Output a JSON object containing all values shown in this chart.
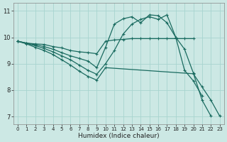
{
  "xlabel": "Humidex (Indice chaleur)",
  "xlim": [
    -0.5,
    23.5
  ],
  "ylim": [
    6.7,
    11.3
  ],
  "yticks": [
    7,
    8,
    9,
    10,
    11
  ],
  "xticks": [
    0,
    1,
    2,
    3,
    4,
    5,
    6,
    7,
    8,
    9,
    10,
    11,
    12,
    13,
    14,
    15,
    16,
    17,
    18,
    19,
    20,
    21,
    22,
    23
  ],
  "bg_color": "#cce8e4",
  "grid_color": "#a8d4cf",
  "line_color": "#1a6b60",
  "lines": [
    {
      "x": [
        0,
        1,
        2,
        3,
        4,
        5,
        6,
        7,
        8,
        9,
        10,
        11,
        12,
        13,
        14,
        15,
        16,
        17,
        18,
        19,
        20
      ],
      "y": [
        9.85,
        9.78,
        9.75,
        9.73,
        9.65,
        9.6,
        9.5,
        9.45,
        9.42,
        9.38,
        9.85,
        9.9,
        9.92,
        9.95,
        9.95,
        9.95,
        9.95,
        9.95,
        9.95,
        9.95,
        9.95
      ]
    },
    {
      "x": [
        0,
        1,
        2,
        3,
        4,
        5,
        6,
        7,
        8,
        9,
        10,
        11,
        12,
        13,
        14,
        15,
        16,
        17,
        18,
        19,
        20,
        21,
        22,
        23
      ],
      "y": [
        9.85,
        9.78,
        9.72,
        9.65,
        9.55,
        9.42,
        9.3,
        9.2,
        9.1,
        8.85,
        9.62,
        10.5,
        10.7,
        10.78,
        10.55,
        10.85,
        10.82,
        10.55,
        10.0,
        9.55,
        8.65,
        7.62,
        7.02,
        null
      ]
    },
    {
      "x": [
        0,
        1,
        2,
        3,
        4,
        5,
        6,
        7,
        8,
        9,
        10,
        11,
        12,
        13,
        14,
        15,
        16,
        17,
        18,
        19,
        20,
        21,
        22
      ],
      "y": [
        9.85,
        9.77,
        9.68,
        9.58,
        9.45,
        9.3,
        9.15,
        8.95,
        8.75,
        8.6,
        9.0,
        9.5,
        10.12,
        10.5,
        10.68,
        10.78,
        10.68,
        10.85,
        10.0,
        8.75,
        8.35,
        7.78,
        null
      ]
    },
    {
      "x": [
        0,
        1,
        2,
        3,
        4,
        5,
        6,
        7,
        8,
        9,
        10,
        20,
        21,
        22,
        23
      ],
      "y": [
        9.85,
        9.75,
        9.62,
        9.5,
        9.35,
        9.15,
        8.95,
        8.72,
        8.52,
        8.38,
        8.85,
        8.62,
        8.12,
        7.62,
        7.02
      ]
    }
  ]
}
